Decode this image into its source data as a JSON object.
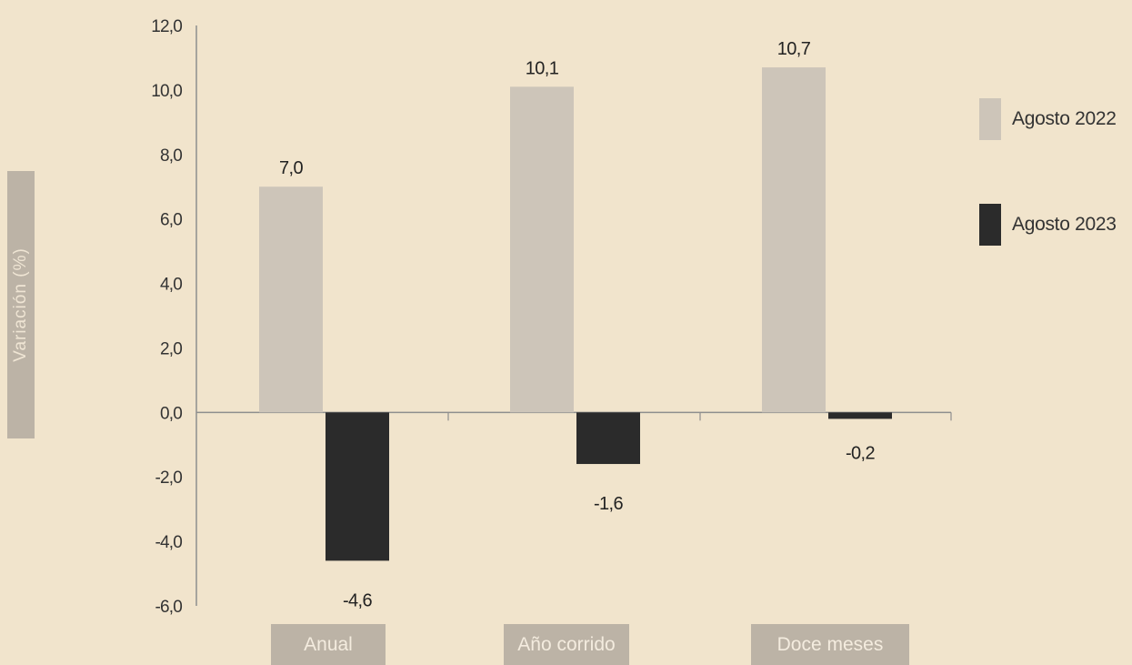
{
  "colors": {
    "background": "#f1e4cc",
    "series_2022": "#cdc5b9",
    "series_2023": "#2b2b2b",
    "axis": "#8e8e8e",
    "label_box": "#bcb3a6"
  },
  "chart_data": {
    "type": "bar",
    "categories": [
      "Anual",
      "Año corrido",
      "Doce meses"
    ],
    "series": [
      {
        "name": "Agosto 2022",
        "values": [
          7.0,
          10.1,
          10.7
        ],
        "labels": [
          "7,0",
          "10,1",
          "10,7"
        ]
      },
      {
        "name": "Agosto 2023",
        "values": [
          -4.6,
          -1.6,
          -0.2
        ],
        "labels": [
          "-4,6",
          "-1,6",
          "-0,2"
        ]
      }
    ],
    "ylabel": "Variación (%)",
    "ylim": [
      -6,
      12
    ],
    "yticks": [
      12,
      10,
      8,
      6,
      4,
      2,
      0,
      -2,
      -4,
      -6
    ],
    "ytick_labels": [
      "12,0",
      "10,0",
      "8,0",
      "6,0",
      "4,0",
      "2,0",
      "0,0",
      "-2,0",
      "-4,0",
      "-6,0"
    ],
    "legend_position": "right",
    "grid": false
  }
}
